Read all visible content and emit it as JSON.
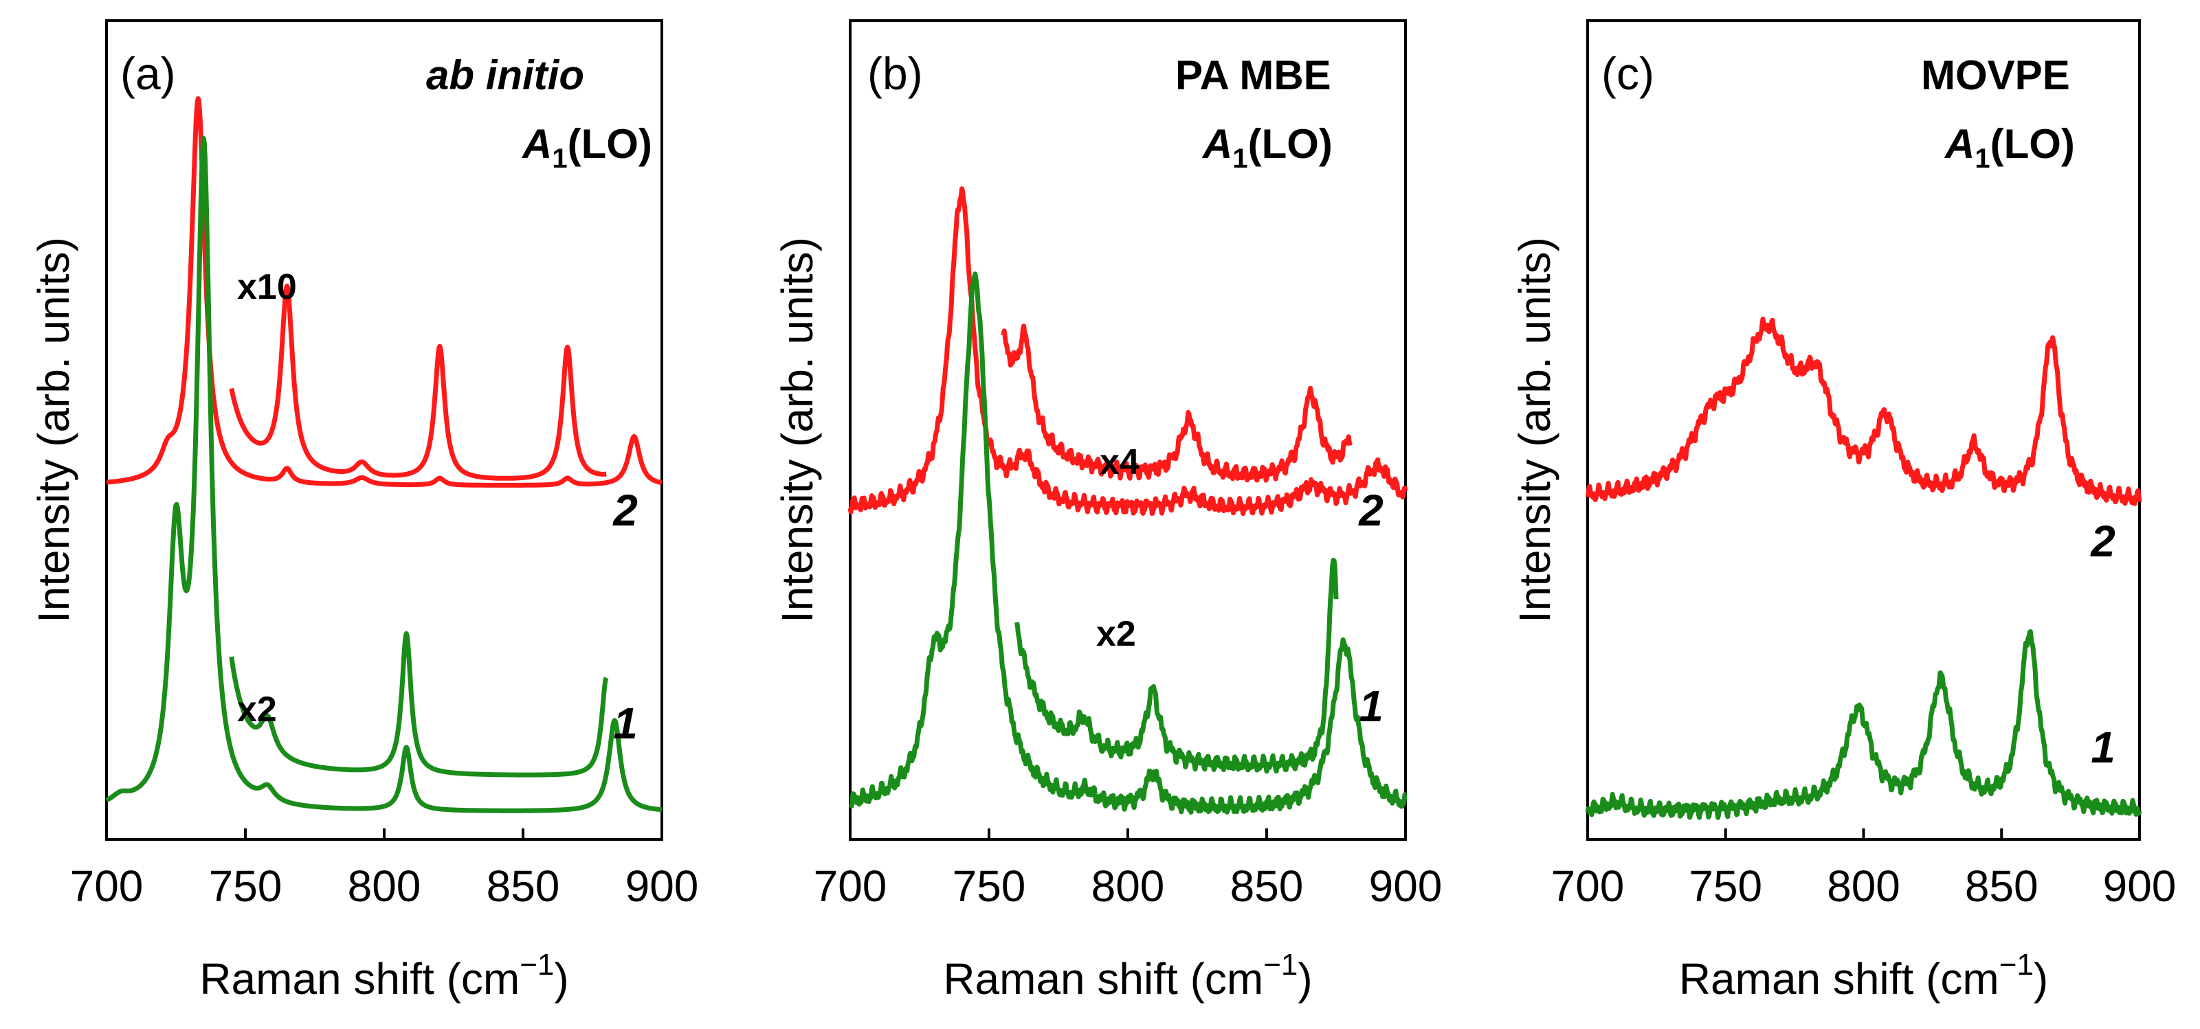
{
  "chart_data": [
    {
      "type": "line",
      "panel": "(a)",
      "title_line1": "ab initio",
      "mode_symbol": "A",
      "mode_sub": "1",
      "mode_suffix": "(LO)",
      "xlabel": "Raman shift (cm",
      "xlabel_sup": "−1",
      "xlabel_close": ")",
      "ylabel": "Intensity (arb. units)",
      "xlim": [
        700,
        900
      ],
      "ylim": [
        0,
        1.05
      ],
      "xticks": [
        "700",
        "750",
        "800",
        "850",
        "900"
      ],
      "series": [
        {
          "name": "2",
          "color": "#ff1a1a",
          "baseline": 0.465,
          "offset_base": 0.465,
          "peaks": [
            [
              722,
              0.03,
              3
            ],
            [
              733,
              0.55,
              3
            ],
            [
              765,
              0.02,
              2
            ],
            [
              792,
              0.01,
              3
            ],
            [
              820,
              0.01,
              2
            ],
            [
              866,
              0.01,
              2
            ],
            [
              890,
              0.07,
              2.5
            ]
          ]
        },
        {
          "name": "2 x10",
          "color": "#ff1a1a",
          "baseline": 0.47,
          "x_start": 745,
          "x_end": 880,
          "peaks": [
            [
              733,
              2.2,
              3
            ],
            [
              765,
              0.26,
              2.5
            ],
            [
              792,
              0.02,
              3
            ],
            [
              820,
              0.19,
              2.2
            ],
            [
              866,
              0.19,
              2.2
            ],
            [
              890,
              0.1,
              2.5
            ]
          ]
        },
        {
          "name": "1",
          "color": "#1a8c1a",
          "baseline": 0.0,
          "peaks": [
            [
              705,
              0.012,
              4
            ],
            [
              725,
              0.36,
              3
            ],
            [
              735,
              0.93,
              3
            ],
            [
              758,
              0.02,
              3
            ],
            [
              808,
              0.09,
              2
            ],
            [
              883,
              0.13,
              2.5
            ]
          ]
        },
        {
          "name": "1 x2",
          "color": "#1a8c1a",
          "baseline": 0.05,
          "x_start": 745,
          "x_end": 880,
          "peaks": [
            [
              725,
              0.72,
              3
            ],
            [
              735,
              1.85,
              3
            ],
            [
              758,
              0.05,
              3
            ],
            [
              808,
              0.2,
              2
            ],
            [
              880,
              0.14,
              2
            ]
          ]
        }
      ],
      "annotations": [
        "x10",
        "x2"
      ],
      "curve_labels": [
        "2",
        "1"
      ]
    },
    {
      "type": "line",
      "panel": "(b)",
      "title_line1": "PA MBE",
      "mode_symbol": "A",
      "mode_sub": "1",
      "mode_suffix": "(LO)",
      "xlabel": "Raman shift (cm",
      "xlabel_sup": "−1",
      "xlabel_close": ")",
      "ylabel": "Intensity (arb. units)",
      "xlim": [
        700,
        900
      ],
      "ylim": [
        0,
        1.05
      ],
      "xticks": [
        "700",
        "750",
        "800",
        "850",
        "900"
      ],
      "series": [
        {
          "name": "2",
          "color": "#ff1a1a",
          "baseline": 0.43,
          "peaks": [
            [
              740,
              0.45,
              5
            ],
            [
              763,
              0.06,
              5
            ],
            [
              822,
              0.02,
              5
            ],
            [
              866,
              0.03,
              6
            ],
            [
              890,
              0.06,
              7
            ]
          ]
        },
        {
          "name": "2 x4",
          "color": "#ff1a1a",
          "baseline": 0.47,
          "x_start": 755,
          "x_end": 880,
          "peaks": [
            [
              740,
              2.0,
              5
            ],
            [
              763,
              0.12,
              3
            ],
            [
              822,
              0.08,
              4
            ],
            [
              866,
              0.12,
              4
            ],
            [
              880,
              0.05,
              3
            ]
          ]
        },
        {
          "name": "1",
          "color": "#1a8c1a",
          "baseline": 0.0,
          "peaks": [
            [
              730,
              0.14,
              4
            ],
            [
              745,
              0.75,
              6
            ],
            [
              785,
              0.015,
              3
            ],
            [
              809,
              0.05,
              3
            ],
            [
              878,
              0.24,
              5
            ]
          ]
        },
        {
          "name": "1 x2",
          "color": "#1a8c1a",
          "baseline": 0.06,
          "x_start": 760,
          "x_end": 875,
          "peaks": [
            [
              745,
              1.5,
              6
            ],
            [
              784,
              0.04,
              3
            ],
            [
              809,
              0.1,
              3
            ],
            [
              874,
              0.3,
              2
            ]
          ]
        }
      ],
      "annotations": [
        "x4",
        "x2"
      ],
      "curve_labels": [
        "2",
        "1"
      ]
    },
    {
      "type": "line",
      "panel": "(c)",
      "title_line1": "MOVPE",
      "mode_symbol": "A",
      "mode_sub": "1",
      "mode_suffix": "(LO)",
      "xlabel": "Raman shift (cm",
      "xlabel_sup": "−1",
      "xlabel_close": ")",
      "ylabel": "Intensity (arb. units)",
      "xlim": [
        700,
        900
      ],
      "ylim": [
        0,
        1.05
      ],
      "xticks": [
        "700",
        "750",
        "800",
        "850",
        "900"
      ],
      "series": [
        {
          "name": "2",
          "color": "#ff1a1a",
          "baseline": 0.44,
          "peaks": [
            [
              745,
              0.08,
              10
            ],
            [
              765,
              0.22,
              12
            ],
            [
              783,
              0.12,
              7
            ],
            [
              808,
              0.1,
              5
            ],
            [
              840,
              0.07,
              4
            ],
            [
              868,
              0.23,
              4
            ]
          ]
        },
        {
          "name": "1",
          "color": "#1a8c1a",
          "baseline": 0.0,
          "peaks": [
            [
              710,
              0.012,
              5
            ],
            [
              770,
              0.01,
              10
            ],
            [
              798,
              0.14,
              6
            ],
            [
              828,
              0.18,
              5
            ],
            [
              860,
              0.25,
              4
            ]
          ]
        }
      ],
      "annotations": [],
      "curve_labels": [
        "2",
        "1"
      ]
    }
  ]
}
